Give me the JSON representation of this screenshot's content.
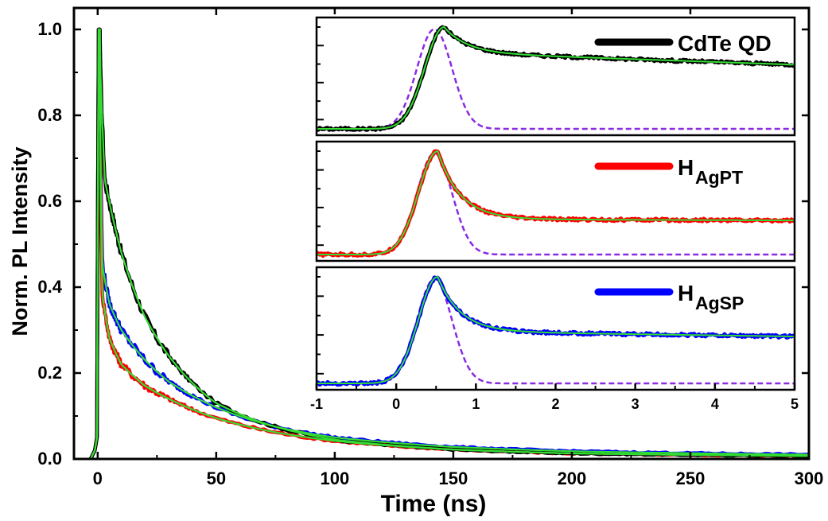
{
  "chart_data": {
    "type": "line",
    "main": {
      "xlabel": "Time (ns)",
      "ylabel": "Norm. PL Intensity",
      "xlim": [
        -10,
        300
      ],
      "ylim": [
        0,
        1.05
      ],
      "x_ticks": [
        0,
        50,
        100,
        150,
        200,
        250,
        300
      ],
      "y_ticks": [
        0.0,
        0.2,
        0.4,
        0.6,
        0.8,
        1.0
      ],
      "x_tick_labels": [
        "0",
        "50",
        "100",
        "150",
        "200",
        "250",
        "300"
      ],
      "y_tick_labels": [
        "0.0",
        "0.2",
        "0.4",
        "0.6",
        "0.8",
        "1.0"
      ],
      "series": [
        {
          "name": "CdTe QD",
          "color": "#000000",
          "peak": 1.0,
          "decay": [
            [
              0.6,
              1.0
            ],
            [
              3,
              0.65
            ],
            [
              10,
              0.48
            ],
            [
              20,
              0.33
            ],
            [
              30,
              0.24
            ],
            [
              50,
              0.13
            ],
            [
              75,
              0.075
            ],
            [
              100,
              0.045
            ],
            [
              150,
              0.022
            ],
            [
              200,
              0.013
            ],
            [
              300,
              0.007
            ]
          ]
        },
        {
          "name": "H_AgPT",
          "color": "#ff0000",
          "peak": 1.0,
          "decay": [
            [
              0.6,
              1.0
            ],
            [
              2,
              0.38
            ],
            [
              5,
              0.28
            ],
            [
              10,
              0.22
            ],
            [
              20,
              0.17
            ],
            [
              30,
              0.14
            ],
            [
              50,
              0.095
            ],
            [
              75,
              0.062
            ],
            [
              100,
              0.042
            ],
            [
              150,
              0.022
            ],
            [
              200,
              0.013
            ],
            [
              300,
              0.007
            ]
          ]
        },
        {
          "name": "H_AgSP",
          "color": "#0000ff",
          "peak": 1.0,
          "decay": [
            [
              0.6,
              1.0
            ],
            [
              2,
              0.45
            ],
            [
              5,
              0.36
            ],
            [
              10,
              0.3
            ],
            [
              20,
              0.23
            ],
            [
              30,
              0.18
            ],
            [
              50,
              0.12
            ],
            [
              75,
              0.075
            ],
            [
              100,
              0.05
            ],
            [
              150,
              0.028
            ],
            [
              200,
              0.018
            ],
            [
              300,
              0.01
            ]
          ]
        }
      ],
      "fit_color": "#33dd33"
    },
    "inset": {
      "xlim": [
        -1,
        5
      ],
      "x_ticks": [
        -1,
        0,
        1,
        2,
        3,
        4,
        5
      ],
      "x_tick_labels": [
        "-1",
        "0",
        "1",
        "2",
        "3",
        "4",
        "5"
      ],
      "irf_color": "#8a2be2",
      "panels": [
        {
          "label": "CdTe QD",
          "sub": "",
          "color": "#000000",
          "peak_time": 0.6,
          "plateau": 0.73,
          "plateau_end": 0.63
        },
        {
          "label": "H",
          "sub": "AgPT",
          "color": "#ff0000",
          "peak_time": 0.52,
          "plateau": 0.34,
          "plateau_end": 0.33
        },
        {
          "label": "H",
          "sub": "AgSP",
          "color": "#0000ff",
          "peak_time": 0.52,
          "plateau": 0.48,
          "plateau_end": 0.44
        }
      ]
    }
  }
}
